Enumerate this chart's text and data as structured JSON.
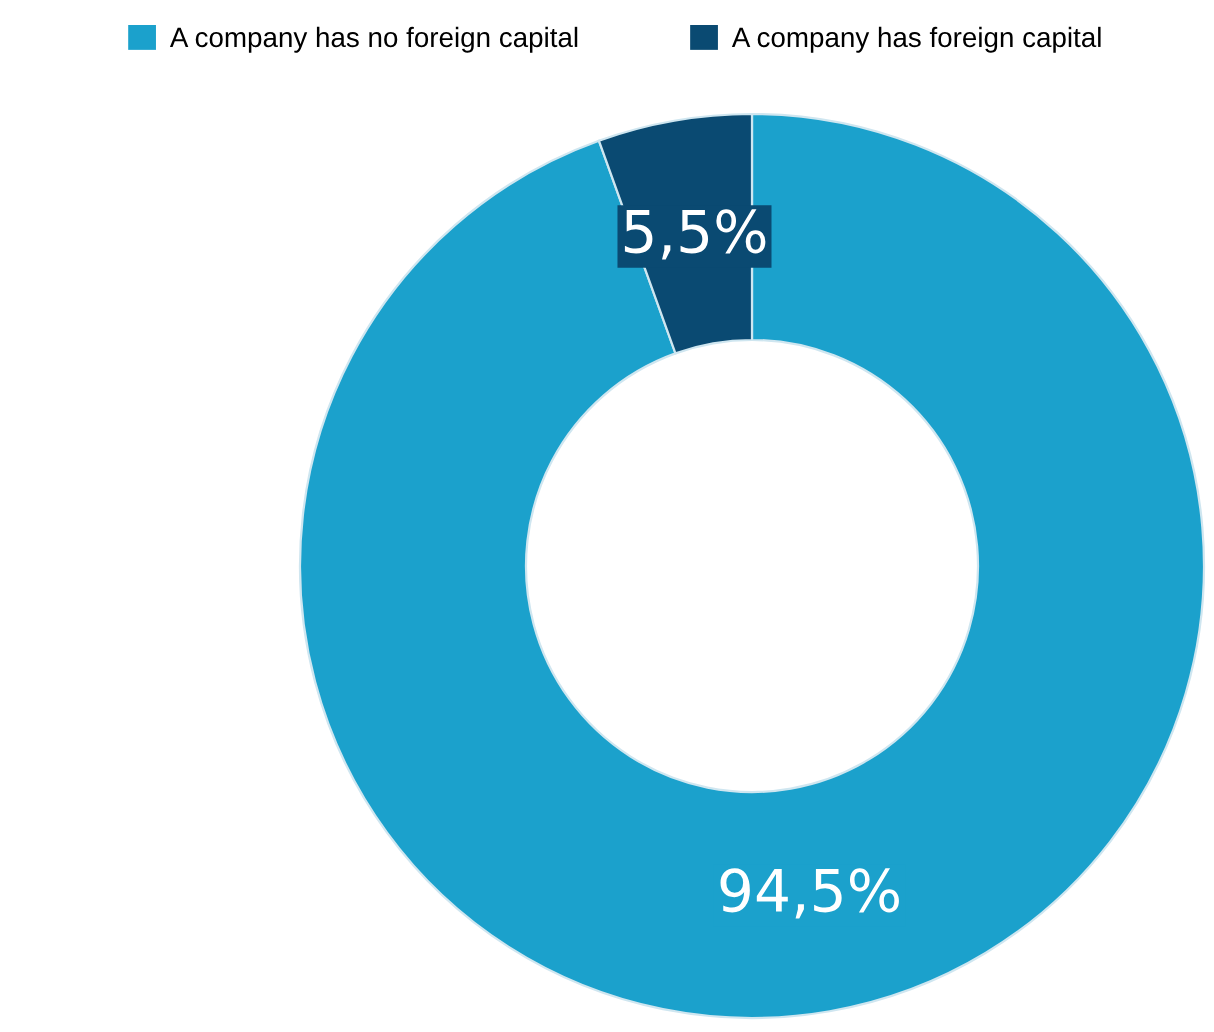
{
  "chart_data": {
    "type": "donut",
    "categories": [
      "A company has no foreign capital",
      "A company has foreign capital"
    ],
    "values": [
      94.5,
      5.5
    ],
    "colors": [
      "#1ba1cc",
      "#0a4a72"
    ],
    "value_labels": [
      "94,5%",
      "5,5%"
    ],
    "legend": "top left"
  }
}
